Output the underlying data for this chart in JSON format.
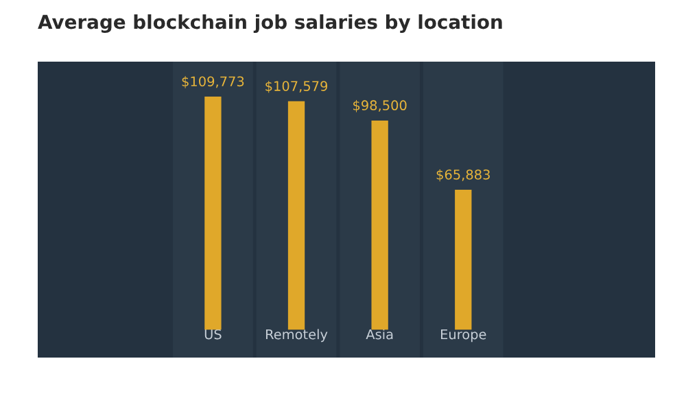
{
  "chart_data": {
    "type": "bar",
    "title": "Average blockchain job salaries by location",
    "categories": [
      "US",
      "Remotely",
      "Asia",
      "Europe"
    ],
    "values": [
      109773,
      107579,
      98500,
      65883
    ],
    "value_labels": [
      "$109,773",
      "$107,579",
      "$98,500",
      "$65,883"
    ],
    "color": "#e0a82a",
    "grid": false,
    "legend": false
  }
}
